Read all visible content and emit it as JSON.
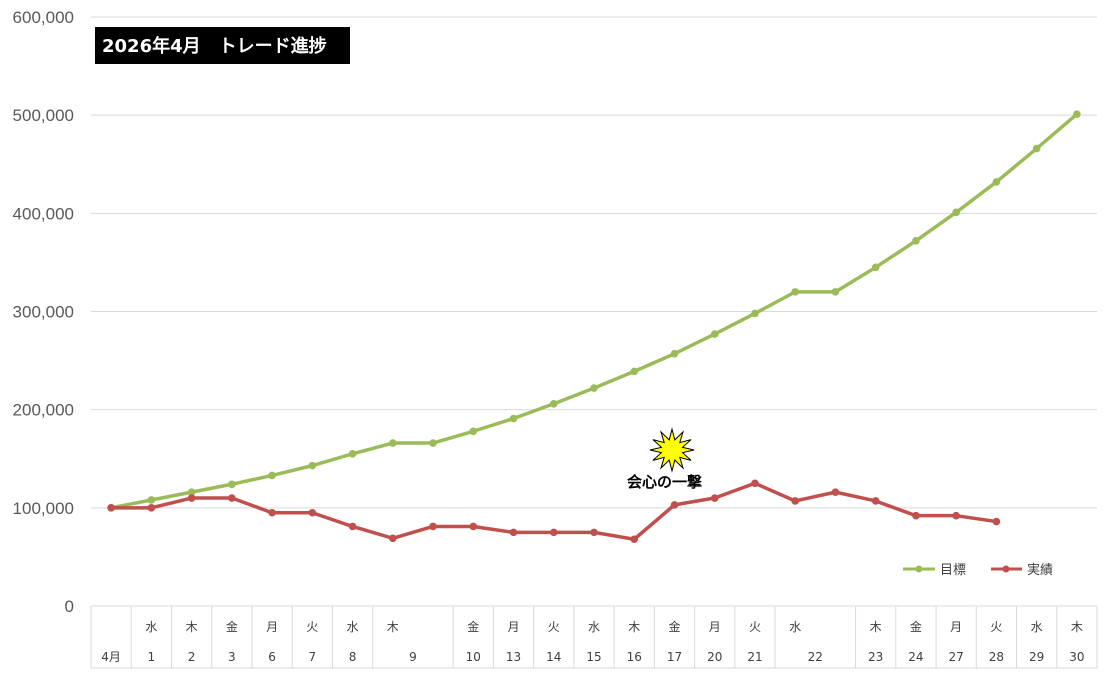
{
  "chart_data": {
    "type": "line",
    "title": "2026年4月　トレード進捗",
    "ylim": [
      0,
      600000
    ],
    "yticks": [
      "0",
      "100,000",
      "200,000",
      "300,000",
      "400,000",
      "500,000",
      "600,000"
    ],
    "ytick_values": [
      0,
      100000,
      200000,
      300000,
      400000,
      500000,
      600000
    ],
    "grid": true,
    "legend_position": "bottom-right",
    "categories": [
      {
        "day": "",
        "num": "4月"
      },
      {
        "day": "水",
        "num": "1"
      },
      {
        "day": "木",
        "num": "2"
      },
      {
        "day": "金",
        "num": "3"
      },
      {
        "day": "月",
        "num": "6"
      },
      {
        "day": "火",
        "num": "7"
      },
      {
        "day": "水",
        "num": "8"
      },
      {
        "day": "木",
        "num": "9"
      },
      {
        "day": "",
        "num": ""
      },
      {
        "day": "金",
        "num": "10"
      },
      {
        "day": "月",
        "num": "13"
      },
      {
        "day": "火",
        "num": "14"
      },
      {
        "day": "水",
        "num": "15"
      },
      {
        "day": "木",
        "num": "16"
      },
      {
        "day": "金",
        "num": "17"
      },
      {
        "day": "月",
        "num": "20"
      },
      {
        "day": "火",
        "num": "21"
      },
      {
        "day": "水",
        "num": "22"
      },
      {
        "day": "",
        "num": ""
      },
      {
        "day": "木",
        "num": "23"
      },
      {
        "day": "金",
        "num": "24"
      },
      {
        "day": "月",
        "num": "27"
      },
      {
        "day": "火",
        "num": "28"
      },
      {
        "day": "水",
        "num": "29"
      },
      {
        "day": "木",
        "num": "30"
      }
    ],
    "series": [
      {
        "name": "目標",
        "color": "#9BBB59",
        "values": [
          100000,
          108000,
          116000,
          124000,
          133000,
          143000,
          155000,
          166000,
          166000,
          178000,
          191000,
          206000,
          222000,
          239000,
          257000,
          277000,
          298000,
          320000,
          320000,
          345000,
          372000,
          401000,
          432000,
          466000,
          501000
        ]
      },
      {
        "name": "実績",
        "color": "#C0504D",
        "values": [
          100000,
          100000,
          110000,
          110000,
          95000,
          95000,
          81000,
          69000,
          81000,
          81000,
          75000,
          75000,
          75000,
          68000,
          103000,
          110000,
          125000,
          107000,
          116000,
          107000,
          92000,
          92000,
          86000,
          null,
          null
        ]
      }
    ],
    "annotation": {
      "text": "会心の一撃",
      "starburst_color": "#FFFF00",
      "near_category_index": 14
    }
  }
}
